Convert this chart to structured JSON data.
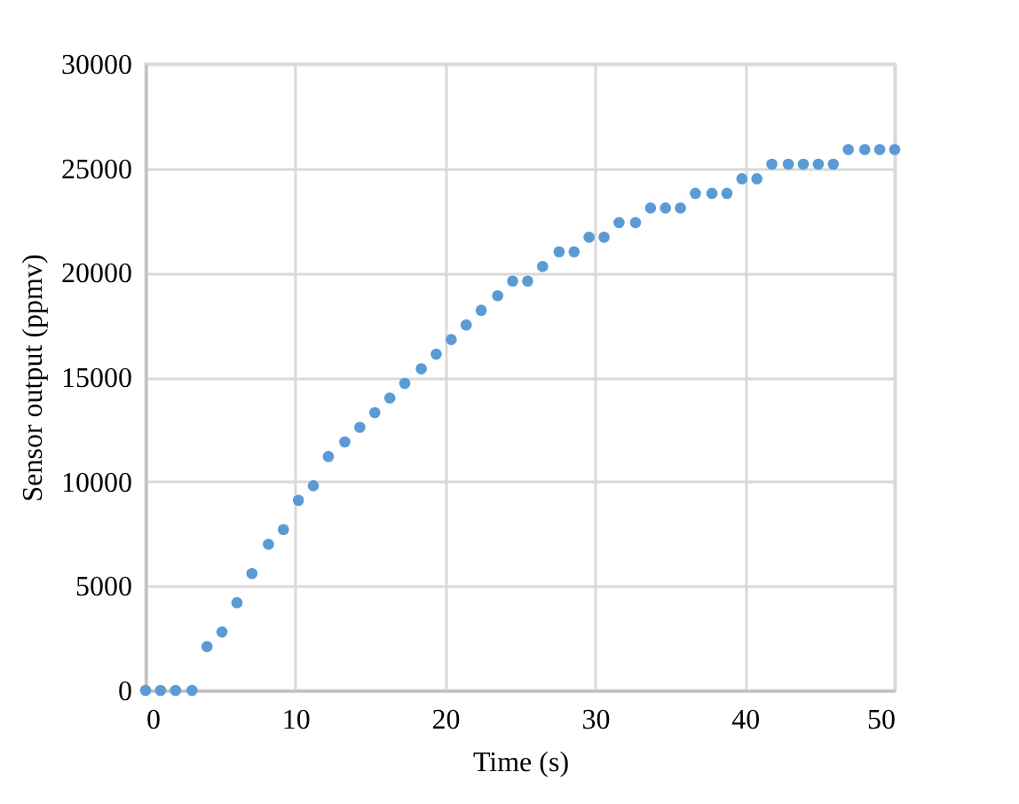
{
  "chart_data": {
    "type": "scatter",
    "xlabel": "Time (s)",
    "ylabel": "Sensor output (ppmv)",
    "x": [
      0,
      1,
      2,
      3.1,
      4.1,
      5.1,
      6.1,
      7.1,
      8.2,
      9.2,
      10.2,
      11.2,
      12.2,
      13.3,
      14.3,
      15.3,
      16.3,
      17.3,
      18.4,
      19.4,
      20.4,
      21.4,
      22.4,
      23.5,
      24.5,
      25.5,
      26.5,
      27.6,
      28.6,
      29.6,
      30.6,
      31.6,
      32.7,
      33.7,
      34.7,
      35.7,
      36.7,
      37.8,
      38.8,
      39.8,
      40.8,
      41.8,
      42.9,
      43.9,
      44.9,
      45.9,
      46.9,
      48,
      49,
      50
    ],
    "series": [
      {
        "color": "#5b9bd5",
        "values": [
          0,
          0,
          0,
          0,
          2100,
          2800,
          4200,
          5600,
          7000,
          7700,
          9100,
          9800,
          11200,
          11900,
          12600,
          13300,
          14000,
          14700,
          15400,
          16100,
          16800,
          17500,
          18200,
          18900,
          19600,
          19600,
          20300,
          21000,
          21000,
          21700,
          21700,
          22400,
          22400,
          23100,
          23100,
          23100,
          23800,
          23800,
          23800,
          24500,
          24500,
          25200,
          25200,
          25200,
          25200,
          25200,
          25900,
          25900,
          25900,
          25900
        ]
      }
    ],
    "xlim": [
      0,
      50
    ],
    "xticks": [
      0,
      10,
      20,
      30,
      40,
      50
    ],
    "ylim": [
      0,
      30000
    ],
    "yticks": [
      0,
      5000,
      10000,
      15000,
      20000,
      25000,
      30000
    ],
    "grid": true,
    "marker": "circle"
  }
}
